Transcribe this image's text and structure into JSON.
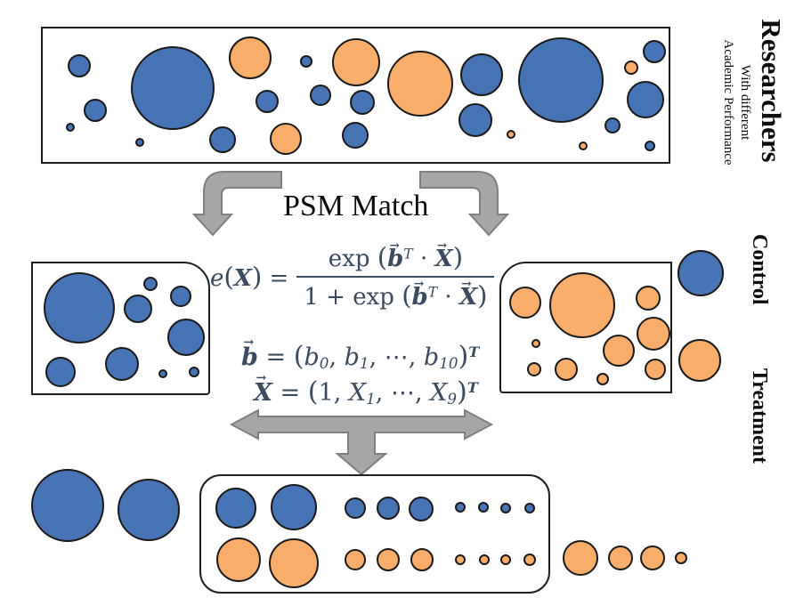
{
  "colors": {
    "blue": "#4674b4",
    "orange": "#f9ad6a",
    "outline": "#1a1a1a",
    "box_border": "#1f1f1f",
    "arrow_fill": "#a6a6a6",
    "arrow_stroke": "#7f7f7f",
    "formula": "#3b4a5e",
    "text": "#0d0d0d"
  },
  "labels": {
    "psm_match": "PSM Match",
    "researchers": "Researchers",
    "researchers_sub1": "With different",
    "researchers_sub2": "Academic Performance",
    "control": "Control",
    "treatment": "Treatment"
  },
  "formula": {
    "lhs": [
      {
        "t": "e",
        "c": "i"
      },
      {
        "t": "(",
        "c": "paren"
      },
      {
        "t": "X",
        "c": "bi"
      },
      {
        "t": ")",
        "c": "paren"
      },
      {
        "t": " ="
      }
    ],
    "numerator": [
      {
        "t": "exp "
      },
      {
        "t": "(",
        "c": "paren"
      },
      {
        "t": "b",
        "c": "bi vec"
      },
      {
        "t": "T",
        "c": "sup i"
      },
      {
        "t": " · "
      },
      {
        "t": "X",
        "c": "bi vec"
      },
      {
        "t": ")",
        "c": "paren"
      }
    ],
    "denominator": [
      {
        "t": "1 + exp "
      },
      {
        "t": "(",
        "c": "paren"
      },
      {
        "t": "b",
        "c": "bi vec"
      },
      {
        "t": "T",
        "c": "sup i"
      },
      {
        "t": " · "
      },
      {
        "t": "X",
        "c": "bi vec"
      },
      {
        "t": ")",
        "c": "paren"
      }
    ],
    "b_definition": [
      {
        "t": "b",
        "c": "bi vec"
      },
      {
        "t": " = "
      },
      {
        "t": "(",
        "c": "paren"
      },
      {
        "t": "b",
        "c": "i"
      },
      {
        "t": "0",
        "c": "sub i"
      },
      {
        "t": ", "
      },
      {
        "t": "b",
        "c": "i"
      },
      {
        "t": "1",
        "c": "sub i"
      },
      {
        "t": ", ⋯, "
      },
      {
        "t": "b",
        "c": "i"
      },
      {
        "t": "10",
        "c": "sub i"
      },
      {
        "t": ")",
        "c": "paren"
      },
      {
        "t": "T",
        "c": "sup bi"
      }
    ],
    "x_definition": [
      {
        "t": "X",
        "c": "bi vec"
      },
      {
        "t": " = "
      },
      {
        "t": "(",
        "c": "paren"
      },
      {
        "t": "1, "
      },
      {
        "t": "X",
        "c": "i"
      },
      {
        "t": "1",
        "c": "sub i"
      },
      {
        "t": ", ⋯, "
      },
      {
        "t": "X",
        "c": "i"
      },
      {
        "t": "9",
        "c": "sub i"
      },
      {
        "t": ")",
        "c": "paren"
      },
      {
        "t": "T",
        "c": "sup bi"
      }
    ]
  },
  "groups": {
    "researcher_pool": {
      "circles": [
        [
          41,
          42,
          13,
          "b"
        ],
        [
          59,
          92,
          13,
          "b"
        ],
        [
          31,
          111,
          5,
          "b"
        ],
        [
          146,
          67,
          47,
          "b"
        ],
        [
          109,
          128,
          5,
          "b"
        ],
        [
          202,
          125,
          15,
          "b"
        ],
        [
          233,
          33,
          24,
          "o"
        ],
        [
          252,
          82,
          13,
          "b"
        ],
        [
          273,
          124,
          18,
          "o"
        ],
        [
          296,
          37,
          7,
          "b"
        ],
        [
          312,
          75,
          12,
          "b"
        ],
        [
          352,
          38,
          27,
          "o"
        ],
        [
          359,
          83,
          14,
          "b"
        ],
        [
          351,
          120,
          15,
          "b"
        ],
        [
          424,
          62,
          37,
          "o"
        ],
        [
          493,
          52,
          24,
          "b"
        ],
        [
          486,
          103,
          19,
          "b"
        ],
        [
          526,
          119,
          5,
          "o"
        ],
        [
          582,
          58,
          48,
          "b"
        ],
        [
          607,
          132,
          5,
          "o"
        ],
        [
          640,
          109,
          9,
          "b"
        ],
        [
          661,
          44,
          8,
          "o"
        ],
        [
          687,
          26,
          13,
          "b"
        ],
        [
          677,
          80,
          21,
          "b"
        ],
        [
          682,
          132,
          6,
          "b"
        ]
      ]
    },
    "control_group": {
      "circles": [
        [
          52,
          50,
          40,
          "b"
        ],
        [
          118,
          51,
          16,
          "b"
        ],
        [
          132,
          23,
          8,
          "b"
        ],
        [
          166,
          37,
          12,
          "b"
        ],
        [
          172,
          83,
          21,
          "b"
        ],
        [
          31,
          122,
          17,
          "b"
        ],
        [
          100,
          113,
          19,
          "b"
        ],
        [
          146,
          124,
          5,
          "b"
        ],
        [
          181,
          122,
          6,
          "b"
        ]
      ]
    },
    "treatment_group": {
      "circles": [
        [
          27,
          44,
          18,
          "o"
        ],
        [
          91,
          47,
          37,
          "o"
        ],
        [
          165,
          39,
          14,
          "o"
        ],
        [
          171,
          79,
          19,
          "o"
        ],
        [
          39,
          90,
          5,
          "o"
        ],
        [
          37,
          119,
          8,
          "o"
        ],
        [
          73,
          119,
          13,
          "o"
        ],
        [
          132,
          98,
          18,
          "o"
        ],
        [
          114,
          130,
          7,
          "o"
        ],
        [
          173,
          119,
          12,
          "o"
        ]
      ]
    },
    "treatment_overflow": {
      "circles": [
        [
          787,
          307,
          26,
          "b"
        ],
        [
          786,
          405,
          24,
          "o"
        ]
      ]
    },
    "unmatched_left": {
      "circles": [
        [
          76,
          568,
          41,
          "b"
        ],
        [
          167,
          573,
          35,
          "b"
        ]
      ]
    },
    "matched_pairs": {
      "circles": [
        [
          39,
          36,
          23,
          "b"
        ],
        [
          104,
          35,
          26,
          "b"
        ],
        [
          173,
          36,
          12,
          "b"
        ],
        [
          210,
          36,
          13,
          "b"
        ],
        [
          247,
          37,
          14,
          "b"
        ],
        [
          291,
          35,
          6,
          "b"
        ],
        [
          317,
          35,
          6,
          "b"
        ],
        [
          342,
          36,
          6,
          "b"
        ],
        [
          369,
          36,
          6,
          "b"
        ],
        [
          42,
          94,
          25,
          "o"
        ],
        [
          104,
          98,
          28,
          "o"
        ],
        [
          173,
          94,
          12,
          "o"
        ],
        [
          210,
          94,
          13,
          "o"
        ],
        [
          248,
          94,
          13,
          "o"
        ],
        [
          291,
          94,
          6,
          "o"
        ],
        [
          318,
          94,
          6,
          "o"
        ],
        [
          342,
          94,
          6,
          "o"
        ],
        [
          369,
          94,
          7,
          "o"
        ]
      ]
    },
    "unmatched_right": {
      "circles": [
        [
          652,
          627,
          20,
          "o"
        ],
        [
          697,
          627,
          14,
          "o"
        ],
        [
          733,
          627,
          14,
          "o"
        ],
        [
          765,
          627,
          7,
          "o"
        ]
      ]
    }
  }
}
